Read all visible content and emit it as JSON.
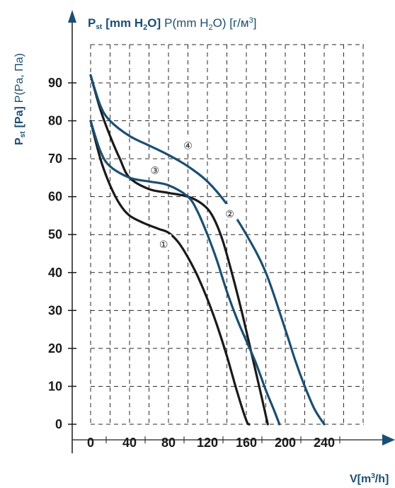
{
  "chart_data": {
    "type": "line",
    "ylabel_top": {
      "p": "P",
      "sub": "st",
      "bold": "[mm H",
      "bold_sub": "2",
      "bold_end": "O]",
      "rest_start": "P(mm H",
      "rest_sub": "2",
      "rest_end": "O) [г/м",
      "rest_sup": "3",
      "rest_close": "]"
    },
    "ylabel_side": {
      "p": "P",
      "sub": "st",
      "bold": "[Pa]",
      "rest": "P(Pa, Па)"
    },
    "xlabel": {
      "start": "V[m",
      "sup": "3",
      "end": "/h]"
    },
    "ylim": [
      0,
      90
    ],
    "xlim": [
      0,
      240
    ],
    "y_ticks": [
      "0",
      "10",
      "20",
      "30",
      "40",
      "50",
      "60",
      "70",
      "80",
      "90"
    ],
    "x_ticks": [
      "0",
      "40",
      "80",
      "120",
      "160",
      "200",
      "240"
    ],
    "grid": true,
    "series": [
      {
        "label": "①",
        "color": "#1a1a1a",
        "x": [
          0,
          10,
          20,
          30,
          40,
          55,
          70,
          80,
          90,
          100,
          110,
          120,
          130,
          140,
          150,
          160,
          163
        ],
        "y": [
          80,
          70,
          63,
          58,
          55,
          53,
          51.5,
          50.5,
          48,
          44,
          39,
          33,
          26,
          18,
          9,
          1,
          0
        ]
      },
      {
        "label": "②",
        "color": "#1a1a1a",
        "x": [
          0,
          10,
          20,
          30,
          40,
          60,
          80,
          100,
          115,
          125,
          135,
          145,
          155,
          165,
          175,
          182
        ],
        "y": [
          92,
          83,
          76,
          70,
          65,
          62,
          61,
          60,
          58,
          55,
          49,
          40,
          30,
          19,
          8,
          0
        ]
      },
      {
        "label": "③",
        "color": "#1b4f72",
        "x": [
          0,
          10,
          20,
          40,
          60,
          80,
          100,
          110,
          120,
          130,
          140,
          150,
          160,
          170,
          180,
          188,
          194
        ],
        "y": [
          80,
          72,
          68,
          65,
          64,
          63,
          60,
          56,
          50,
          43,
          35,
          28,
          22,
          16,
          9,
          4,
          0
        ]
      },
      {
        "label": "④",
        "color": "#1b4f72",
        "x": [
          0,
          10,
          20,
          40,
          60,
          80,
          100,
          120,
          140,
          160,
          180,
          200,
          210,
          220,
          230,
          240
        ],
        "y": [
          92,
          84,
          80,
          76,
          73.5,
          71,
          68,
          64,
          58,
          50,
          40,
          25,
          17,
          10,
          4,
          0
        ]
      }
    ]
  }
}
